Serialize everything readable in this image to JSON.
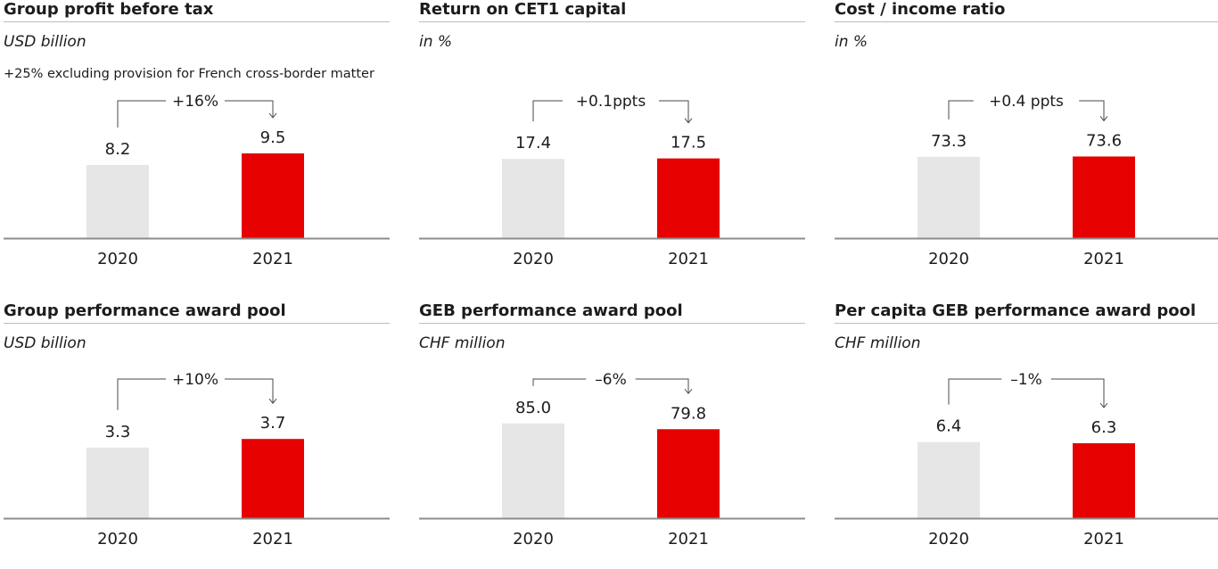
{
  "chart_data": [
    {
      "type": "bar",
      "title": "Group profit before tax",
      "subtitle": "USD billion",
      "note": "+25% excluding provision for French cross-border matter",
      "categories": [
        "2020",
        "2021"
      ],
      "values": [
        8.2,
        9.5
      ],
      "value_labels": [
        "8.2",
        "9.5"
      ],
      "change_label": "+16%",
      "ylim": [
        0,
        12.0
      ],
      "colors": [
        "#e6e6e6",
        "#e60000"
      ]
    },
    {
      "type": "bar",
      "title": "Return on CET1 capital",
      "subtitle": "in %",
      "note": "",
      "categories": [
        "2020",
        "2021"
      ],
      "values": [
        17.4,
        17.5
      ],
      "value_labels": [
        "17.4",
        "17.5"
      ],
      "change_label": "+0.1ppts",
      "ylim": [
        0,
        23.5
      ],
      "colors": [
        "#e6e6e6",
        "#e60000"
      ]
    },
    {
      "type": "bar",
      "title": "Cost / income ratio",
      "subtitle": "in %",
      "note": "",
      "categories": [
        "2020",
        "2021"
      ],
      "values": [
        73.3,
        73.6
      ],
      "value_labels": [
        "73.3",
        "73.6"
      ],
      "change_label": "+0.4 ppts",
      "ylim": [
        0,
        96.5
      ],
      "colors": [
        "#e6e6e6",
        "#e60000"
      ]
    },
    {
      "type": "bar",
      "title": "Group performance award pool",
      "subtitle": "USD billion",
      "note": "",
      "categories": [
        "2020",
        "2021"
      ],
      "values": [
        3.3,
        3.7
      ],
      "value_labels": [
        "3.3",
        "3.7"
      ],
      "change_label": "+10%",
      "ylim": [
        0,
        5.0
      ],
      "colors": [
        "#e6e6e6",
        "#e60000"
      ]
    },
    {
      "type": "bar",
      "title": "GEB performance award pool",
      "subtitle": "CHF million",
      "note": "",
      "categories": [
        "2020",
        "2021"
      ],
      "values": [
        85.0,
        79.8
      ],
      "value_labels": [
        "85.0",
        "79.8"
      ],
      "change_label": "–6%",
      "ylim": [
        0,
        96.0
      ],
      "colors": [
        "#e6e6e6",
        "#e60000"
      ]
    },
    {
      "type": "bar",
      "title": "Per capita GEB performance award pool",
      "subtitle": "CHF million",
      "note": "",
      "categories": [
        "2020",
        "2021"
      ],
      "values": [
        6.4,
        6.3
      ],
      "value_labels": [
        "6.4",
        "6.3"
      ],
      "change_label": "–1%",
      "ylim": [
        0,
        9.0
      ],
      "colors": [
        "#e6e6e6",
        "#e60000"
      ]
    }
  ]
}
